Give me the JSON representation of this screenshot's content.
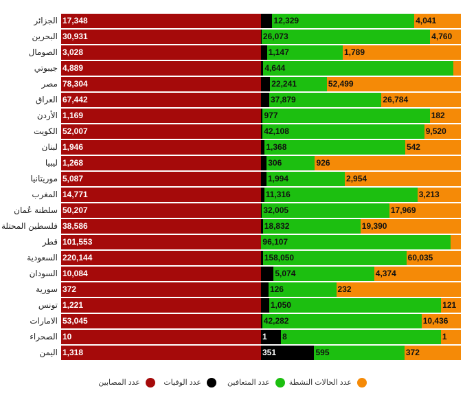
{
  "chart_data": {
    "type": "bar",
    "stacked": "percent",
    "orientation": "horizontal",
    "categories": [
      "الجزائر",
      "البحرين",
      "الصومال",
      "جيبوتي",
      "مصر",
      "العراق",
      "الأردن",
      "الكويت",
      "لبنان",
      "ليبيا",
      "موريتانيا",
      "المغرب",
      "سلطنة عُمان",
      "فلسطين المحتلة",
      "قطر",
      "السعودية",
      "السودان",
      "سورية",
      "تونس",
      "الامارات",
      "الصحراء",
      "اليمن"
    ],
    "series": [
      {
        "name": "عدد المصابين",
        "color": "#a50a0a",
        "values": [
          17348,
          30931,
          3028,
          4889,
          78304,
          67442,
          1169,
          52007,
          1946,
          1268,
          5087,
          14771,
          50207,
          38586,
          101553,
          220144,
          10084,
          372,
          1221,
          53045,
          10,
          1318
        ]
      },
      {
        "name": "عدد الوفيات",
        "color": "#000000",
        "values": [
          978,
          98,
          90,
          56,
          3564,
          2779,
          10,
          405,
          36,
          36,
          139,
          242,
          233,
          364,
          146,
          2059,
          636,
          14,
          50,
          327,
          1,
          351
        ]
      },
      {
        "name": "عدد المتعافين",
        "color": "#1cbf10",
        "values": [
          12329,
          26073,
          1147,
          4644,
          22241,
          37879,
          977,
          42108,
          1368,
          306,
          1994,
          11316,
          32005,
          18832,
          96107,
          158050,
          5074,
          126,
          1050,
          42282,
          8,
          595
        ]
      },
      {
        "name": "عدد الحالات النشطة",
        "color": "#f58a07",
        "values": [
          4041,
          4760,
          1789,
          189,
          52499,
          26784,
          182,
          9520,
          542,
          926,
          2954,
          3213,
          17969,
          19390,
          5300,
          60035,
          4374,
          232,
          121,
          10436,
          1,
          372
        ]
      }
    ],
    "labels": [
      [
        "17,348",
        "",
        "12,329",
        "4,041"
      ],
      [
        "30,931",
        "",
        "26,073",
        "4,760"
      ],
      [
        "3,028",
        "",
        "1,147",
        "1,789"
      ],
      [
        "4,889",
        "",
        "4,644",
        ""
      ],
      [
        "78,304",
        "",
        "22,241",
        "52,499"
      ],
      [
        "67,442",
        "",
        "37,879",
        "26,784"
      ],
      [
        "1,169",
        "",
        "977",
        "182"
      ],
      [
        "52,007",
        "",
        "42,108",
        "9,520"
      ],
      [
        "1,946",
        "",
        "1,368",
        "542"
      ],
      [
        "1,268",
        "",
        "306",
        "926"
      ],
      [
        "5,087",
        "",
        "1,994",
        "2,954"
      ],
      [
        "14,771",
        "",
        "11,316",
        "3,213"
      ],
      [
        "50,207",
        "",
        "32,005",
        "17,969"
      ],
      [
        "38,586",
        "",
        "18,832",
        "19,390"
      ],
      [
        "101,553",
        "",
        "96,107",
        ""
      ],
      [
        "220,144",
        "",
        "158,050",
        "60,035"
      ],
      [
        "10,084",
        "",
        "5,074",
        "4,374"
      ],
      [
        "372",
        "",
        "126",
        "232"
      ],
      [
        "1,221",
        "",
        "1,050",
        "121"
      ],
      [
        "53,045",
        "",
        "42,282",
        "10,436"
      ],
      [
        "10",
        "1",
        "8",
        "1"
      ],
      [
        "1,318",
        "351",
        "595",
        "372"
      ]
    ],
    "legend_position": "bottom",
    "grid": false
  }
}
